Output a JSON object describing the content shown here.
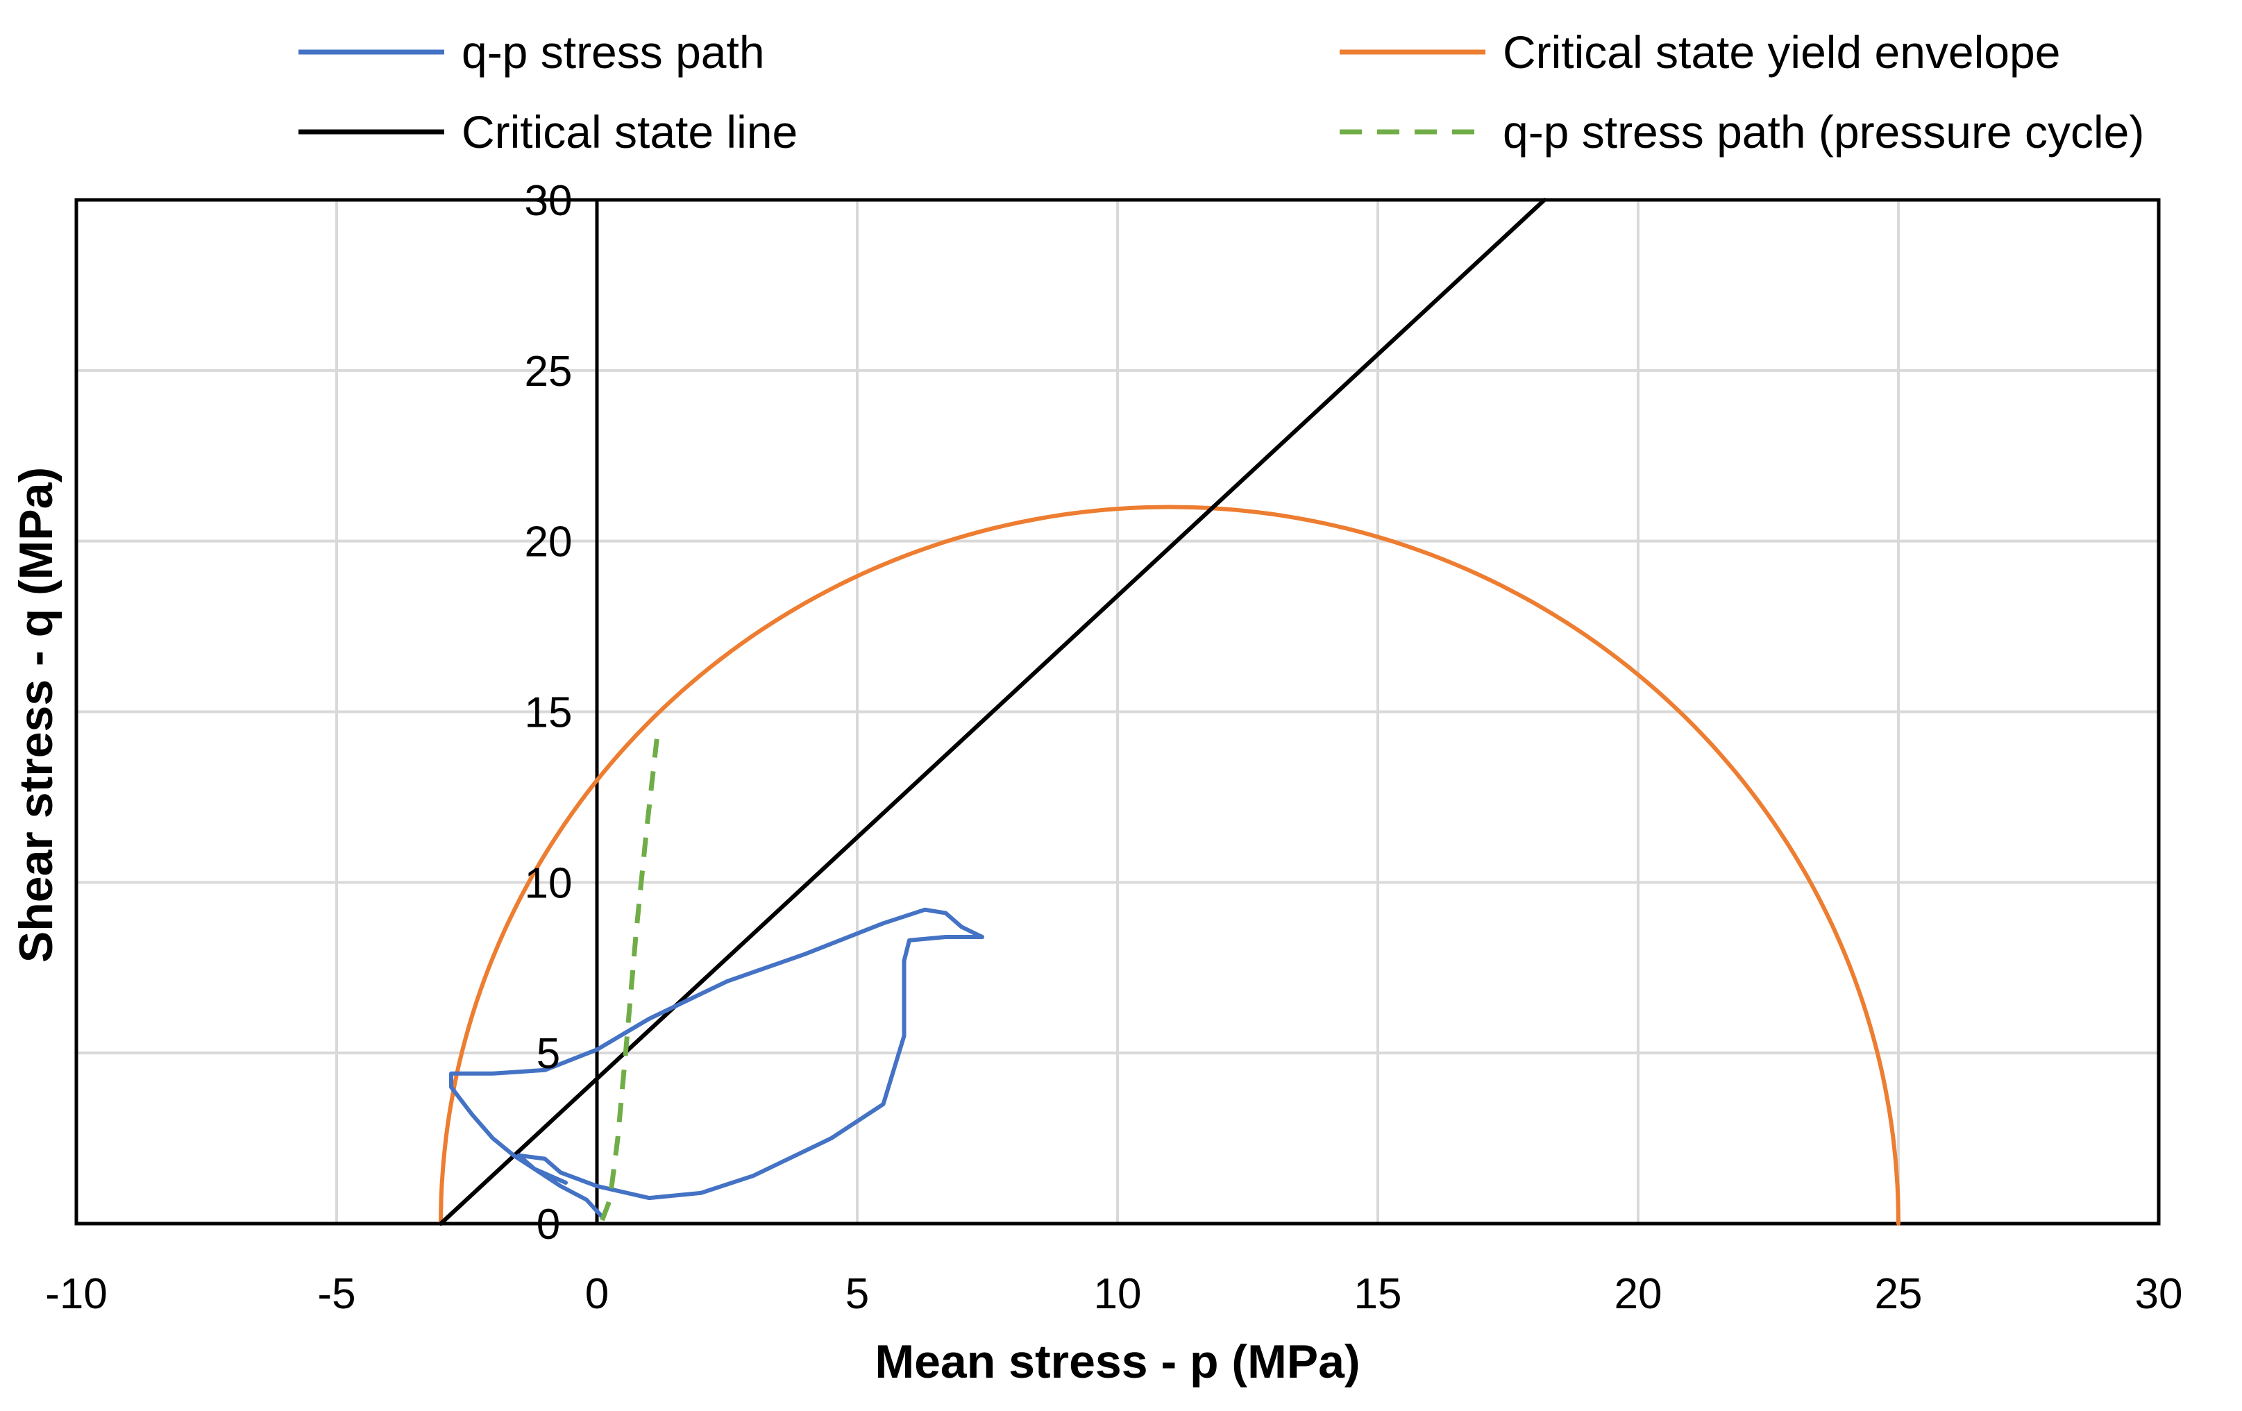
{
  "chart_data": {
    "type": "scatter",
    "title": "",
    "xlabel": "Mean stress - p (MPa)",
    "ylabel": "Shear stress - q (MPa)",
    "xlim": [
      -10,
      30
    ],
    "ylim": [
      0,
      30
    ],
    "x_ticks": [
      -10,
      -5,
      0,
      5,
      10,
      15,
      20,
      25,
      30
    ],
    "y_ticks": [
      0,
      5,
      10,
      15,
      20,
      25,
      30
    ],
    "x_tick_labels": [
      "-10",
      "-5",
      "0",
      "5",
      "10",
      "15",
      "20",
      "25",
      "30"
    ],
    "y_tick_labels": [
      "0",
      "5",
      "10",
      "15",
      "20",
      "25",
      "30"
    ],
    "grid": true,
    "legend_position": "top",
    "series": [
      {
        "name": "q-p stress path",
        "color": "#4472C4",
        "style": "solid",
        "points": [
          [
            0.1,
            0.2
          ],
          [
            -0.2,
            0.7
          ],
          [
            -0.7,
            1.1
          ],
          [
            -1.3,
            1.7
          ],
          [
            -1.6,
            2.0
          ],
          [
            -2.0,
            2.5
          ],
          [
            -2.4,
            3.2
          ],
          [
            -2.8,
            4.0
          ],
          [
            -2.8,
            4.4
          ],
          [
            -2.0,
            4.4
          ],
          [
            -1.0,
            4.5
          ],
          [
            0.0,
            5.1
          ],
          [
            1.0,
            6.0
          ],
          [
            2.5,
            7.1
          ],
          [
            4.0,
            7.9
          ],
          [
            5.5,
            8.8
          ],
          [
            6.3,
            9.2
          ],
          [
            6.7,
            9.1
          ],
          [
            7.0,
            8.7
          ],
          [
            7.4,
            8.4
          ],
          [
            6.7,
            8.4
          ],
          [
            6.0,
            8.3
          ],
          [
            5.9,
            7.7
          ],
          [
            5.9,
            5.5
          ],
          [
            5.5,
            3.5
          ],
          [
            4.5,
            2.5
          ],
          [
            3.0,
            1.4
          ],
          [
            2.0,
            0.9
          ],
          [
            1.0,
            0.75
          ],
          [
            0.0,
            1.1
          ],
          [
            -0.7,
            1.5
          ],
          [
            -1.0,
            1.9
          ],
          [
            -1.5,
            2.0
          ],
          [
            -1.2,
            1.6
          ],
          [
            -0.6,
            1.2
          ]
        ]
      },
      {
        "name": "Critical state yield envelope",
        "color": "#ED7D31",
        "style": "solid",
        "center_p": 11,
        "radius": 14,
        "p_range": [
          -3,
          25
        ]
      },
      {
        "name": "Critical state line",
        "color": "#000000",
        "style": "solid",
        "points": [
          [
            -3,
            0
          ],
          [
            18.2,
            30
          ]
        ]
      },
      {
        "name": "q-p stress path (pressure cycle)",
        "color": "#70AD47",
        "style": "dashed",
        "points": [
          [
            0.1,
            0.1
          ],
          [
            0.25,
            0.7
          ],
          [
            0.4,
            2.5
          ],
          [
            0.55,
            5.0
          ],
          [
            0.75,
            8.5
          ],
          [
            0.95,
            11.5
          ],
          [
            1.15,
            14.2
          ]
        ]
      }
    ]
  }
}
